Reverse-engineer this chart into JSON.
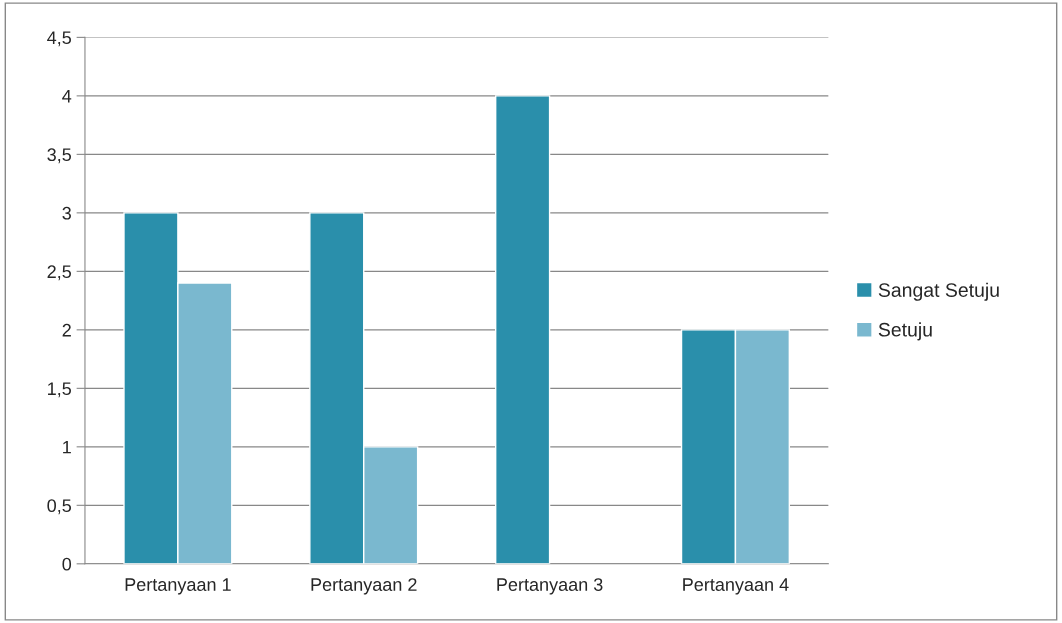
{
  "chart_data": {
    "type": "bar",
    "categories": [
      "Pertanyaan 1",
      "Pertanyaan 2",
      "Pertanyaan 3",
      "Pertanyaan 4"
    ],
    "series": [
      {
        "name": "Sangat Setuju",
        "color": "#2a8fab",
        "values": [
          3,
          3,
          4,
          2
        ]
      },
      {
        "name": "Setuju",
        "color": "#7ab8cf",
        "values": [
          2.4,
          1,
          null,
          2
        ]
      }
    ],
    "ylim": [
      0,
      4.5
    ],
    "yticks": [
      {
        "value": 0,
        "label": "0"
      },
      {
        "value": 0.5,
        "label": "0,5"
      },
      {
        "value": 1,
        "label": "1"
      },
      {
        "value": 1.5,
        "label": "1,5"
      },
      {
        "value": 2,
        "label": "2"
      },
      {
        "value": 2.5,
        "label": "2,5"
      },
      {
        "value": 3,
        "label": "3"
      },
      {
        "value": 3.5,
        "label": "3,5"
      },
      {
        "value": 4,
        "label": "4"
      },
      {
        "value": 4.5,
        "label": "4,5"
      }
    ],
    "grid": "y",
    "legend": "right"
  }
}
